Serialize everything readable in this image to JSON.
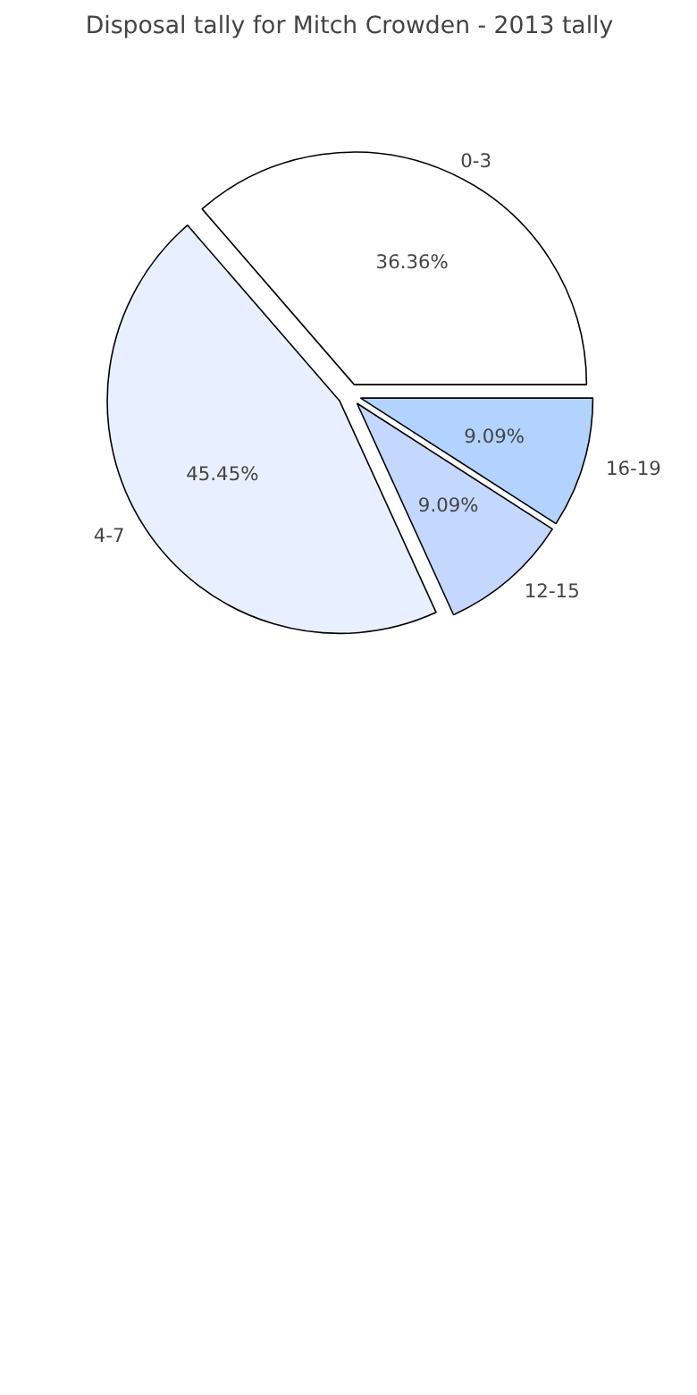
{
  "chart_data": {
    "type": "pie",
    "title": "Disposal tally for Mitch Crowden - 2013 tally",
    "categories": [
      "0-3",
      "4-7",
      "12-15",
      "16-19"
    ],
    "values": [
      36.36,
      45.45,
      9.09,
      9.09
    ],
    "value_labels": [
      "36.36%",
      "45.45%",
      "9.09%",
      "9.09%"
    ],
    "colors": [
      "#ffffff",
      "#e8f0ff",
      "#c4d7ff",
      "#b3d3ff"
    ]
  }
}
